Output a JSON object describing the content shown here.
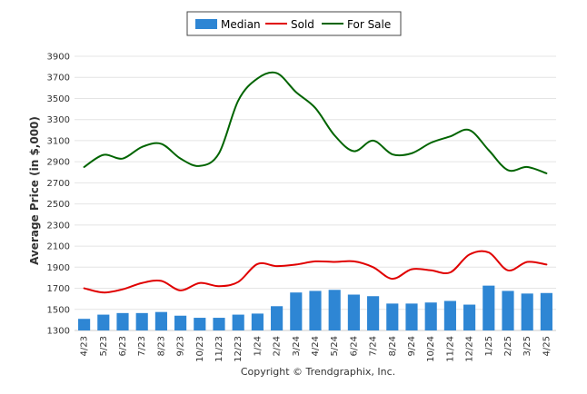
{
  "chart_data": {
    "type": "bar+line",
    "ylabel": "Average Price (in $,000)",
    "footer": "Copyright © Trendgraphix, Inc.",
    "ylim": [
      1300,
      3900
    ],
    "yticks": [
      1300,
      1500,
      1700,
      1900,
      2100,
      2300,
      2500,
      2700,
      2900,
      3100,
      3300,
      3500,
      3700,
      3900
    ],
    "categories": [
      "4/23",
      "5/23",
      "6/23",
      "7/23",
      "8/23",
      "9/23",
      "10/23",
      "11/23",
      "12/23",
      "1/24",
      "2/24",
      "3/24",
      "4/24",
      "5/24",
      "6/24",
      "7/24",
      "8/24",
      "9/24",
      "10/24",
      "11/24",
      "12/24",
      "1/25",
      "2/25",
      "3/25",
      "4/25"
    ],
    "legend": {
      "placement": "top-center"
    },
    "series": [
      {
        "name": "Median",
        "kind": "bar",
        "color": "#2e86d4",
        "values": [
          1410,
          1450,
          1465,
          1465,
          1475,
          1440,
          1420,
          1420,
          1450,
          1460,
          1530,
          1660,
          1675,
          1685,
          1640,
          1625,
          1555,
          1555,
          1565,
          1580,
          1545,
          1725,
          1675,
          1650,
          1655
        ]
      },
      {
        "name": "Sold",
        "kind": "line",
        "color": "#e00000",
        "values": [
          1700,
          1660,
          1690,
          1750,
          1770,
          1680,
          1750,
          1720,
          1760,
          1930,
          1910,
          1925,
          1955,
          1950,
          1955,
          1900,
          1790,
          1880,
          1870,
          1850,
          2020,
          2040,
          1870,
          1950,
          1925
        ]
      },
      {
        "name": "For Sale",
        "kind": "line",
        "color": "#006400",
        "values": [
          2850,
          2965,
          2930,
          3040,
          3070,
          2930,
          2860,
          2980,
          3480,
          3690,
          3740,
          3560,
          3410,
          3150,
          3000,
          3100,
          2970,
          2980,
          3080,
          3140,
          3200,
          3010,
          2820,
          2850,
          2790
        ]
      }
    ]
  }
}
